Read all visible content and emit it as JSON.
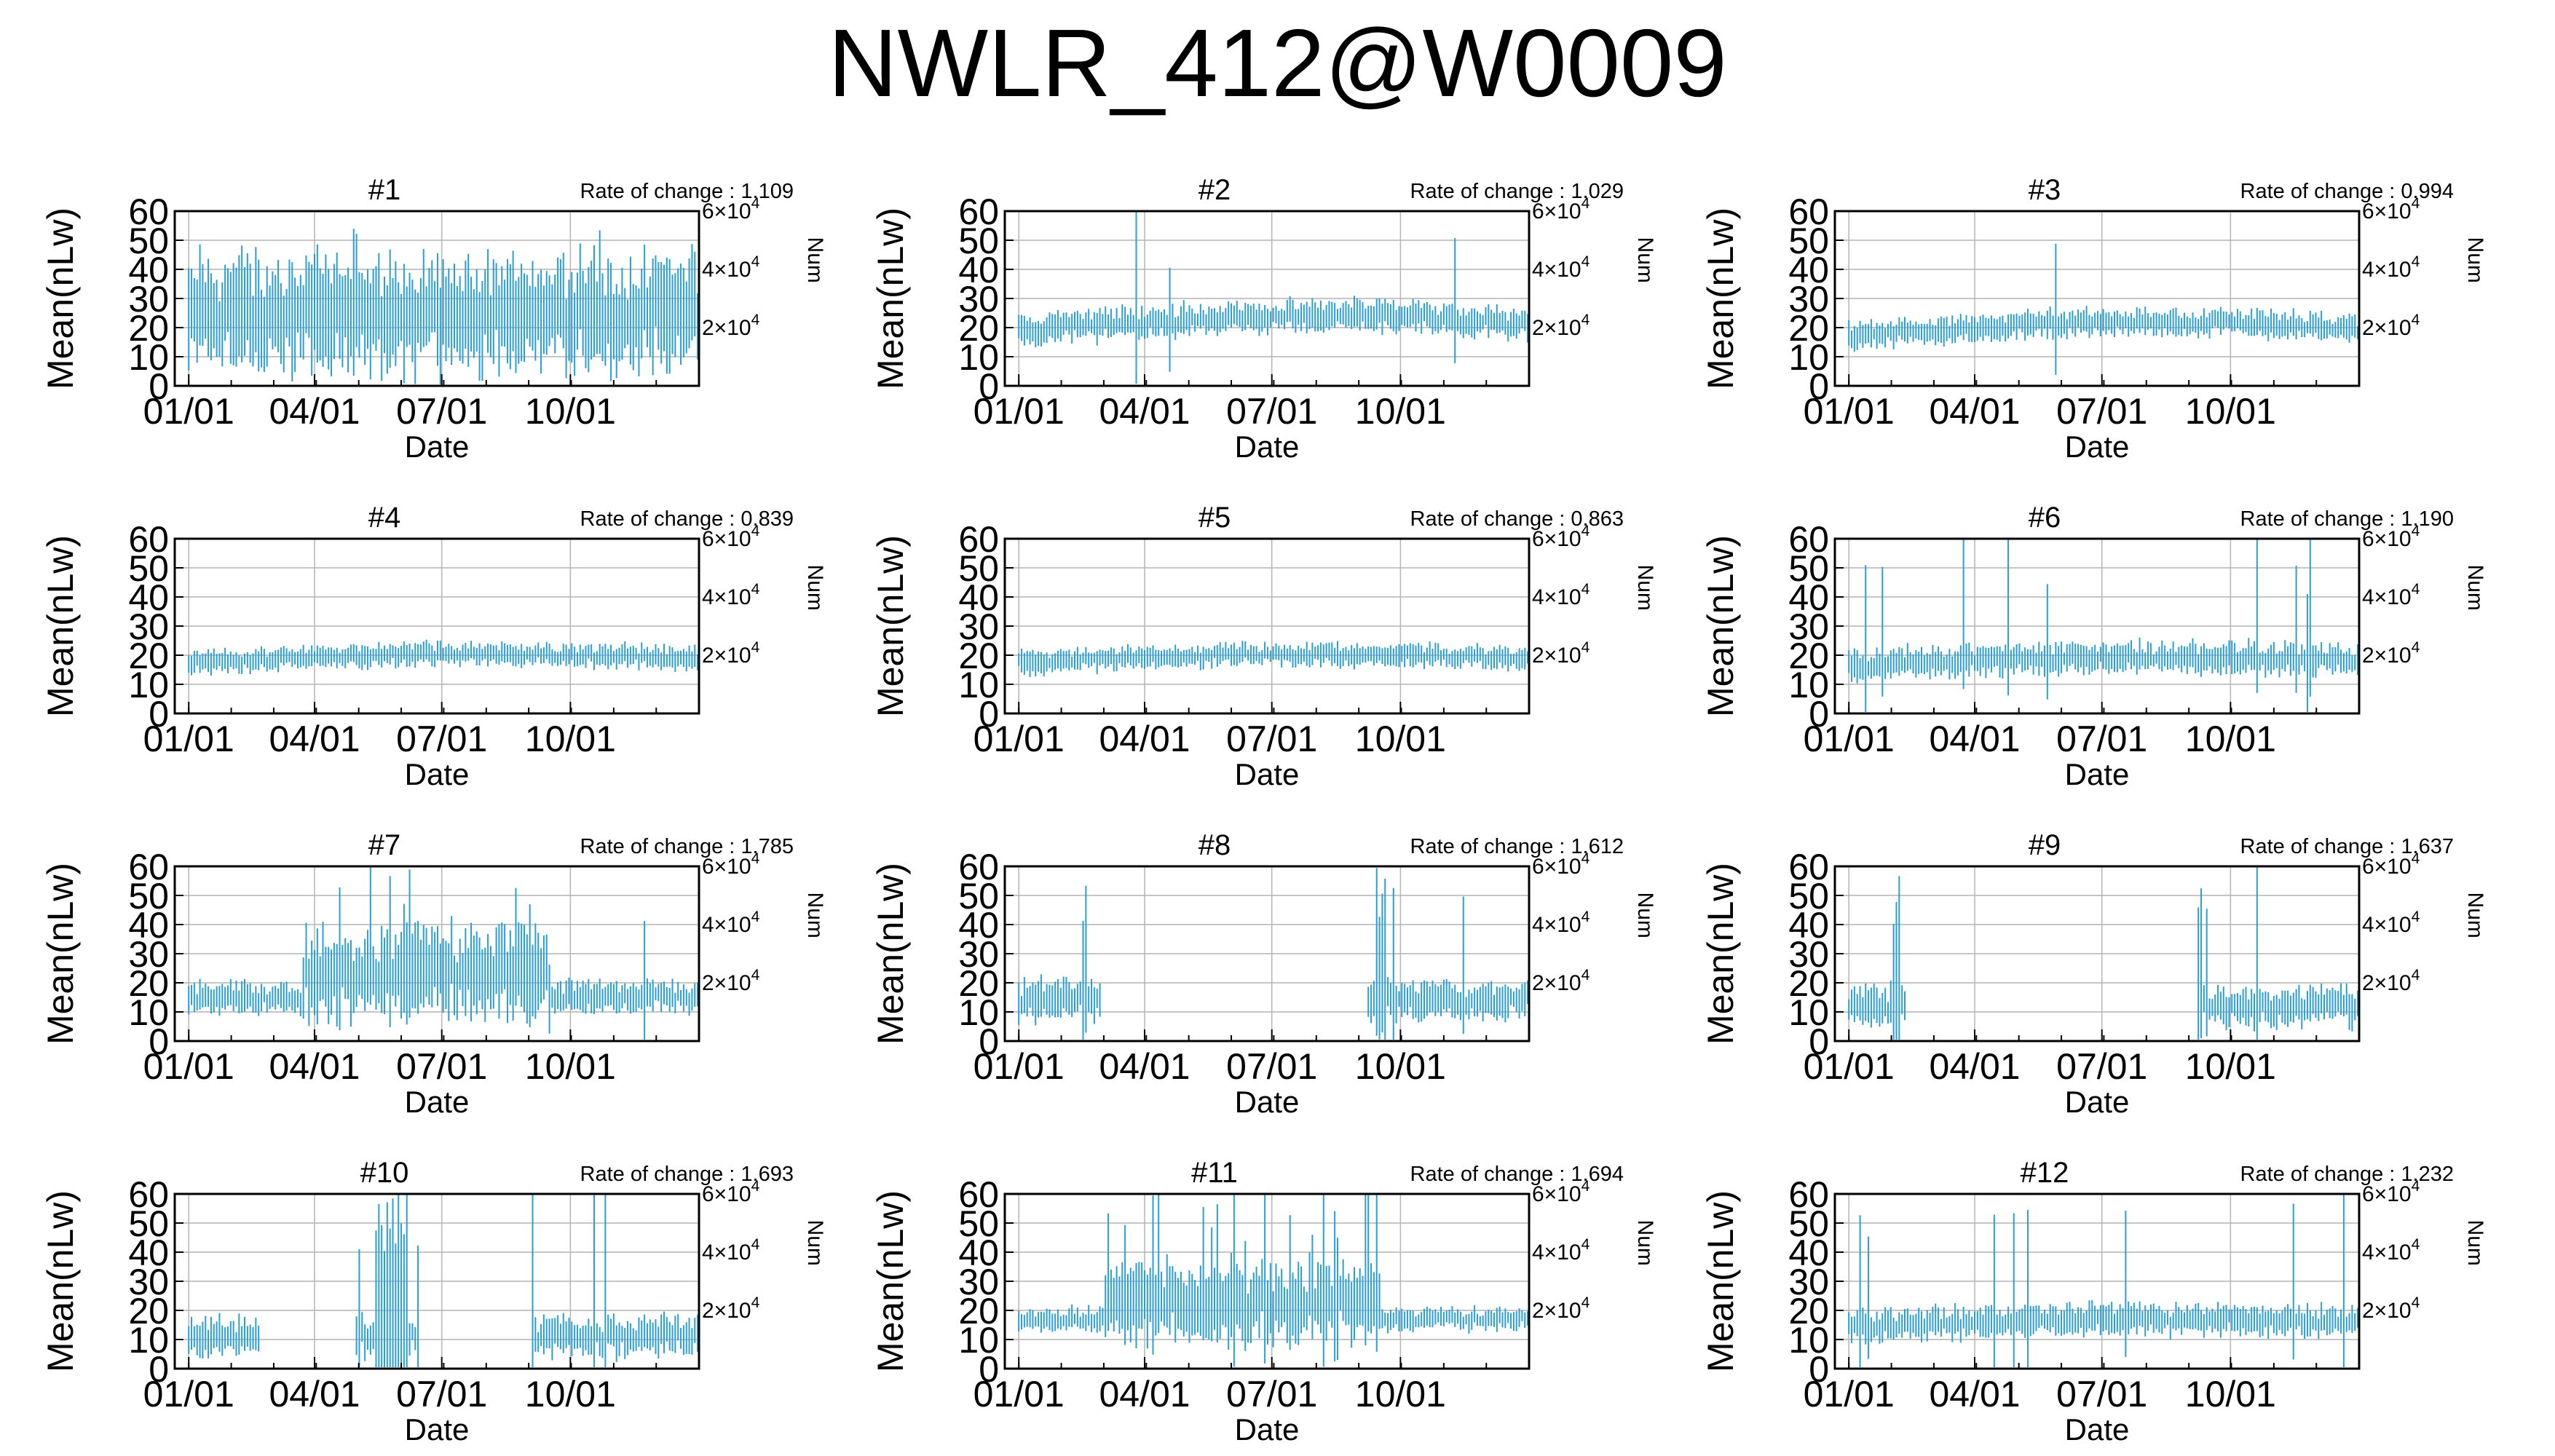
{
  "figure": {
    "title": "NWLR_412@W0009"
  },
  "colors": {
    "series": "#2a9fd6",
    "grid": "#b4b4b4",
    "frame": "#000000"
  },
  "chart_data": [
    {
      "type": "line",
      "title": "#1",
      "rate_of_change": "Rate of change : 1.109",
      "profile": "#1"
    },
    {
      "type": "line",
      "title": "#2",
      "rate_of_change": "Rate of change : 1.029",
      "profile": "#2"
    },
    {
      "type": "line",
      "title": "#3",
      "rate_of_change": "Rate of change : 0.994",
      "profile": "#3"
    },
    {
      "type": "line",
      "title": "#4",
      "rate_of_change": "Rate of change : 0.839",
      "profile": "#4"
    },
    {
      "type": "line",
      "title": "#5",
      "rate_of_change": "Rate of change : 0.863",
      "profile": "#5"
    },
    {
      "type": "line",
      "title": "#6",
      "rate_of_change": "Rate of change : 1.190",
      "profile": "#6"
    },
    {
      "type": "line",
      "title": "#7",
      "rate_of_change": "Rate of change : 1.785",
      "profile": "#7"
    },
    {
      "type": "line",
      "title": "#8",
      "rate_of_change": "Rate of change : 1.612",
      "profile": "#8"
    },
    {
      "type": "line",
      "title": "#9",
      "rate_of_change": "Rate of change : 1.637",
      "profile": "#9"
    },
    {
      "type": "line",
      "title": "#10",
      "rate_of_change": "Rate of change : 1.693",
      "profile": "#10"
    },
    {
      "type": "line",
      "title": "#11",
      "rate_of_change": "Rate of change : 1.694",
      "profile": "#11"
    },
    {
      "type": "line",
      "title": "#12",
      "rate_of_change": "Rate of change : 1.232",
      "profile": "#12"
    }
  ],
  "axes": {
    "xlabel": "Date",
    "ylabel": "Mean(nLw)",
    "y2label": "Num",
    "x_ticks": [
      "01/01",
      "04/01",
      "07/01",
      "10/01"
    ],
    "x_tick_days": [
      0,
      90,
      181,
      273
    ],
    "xlim_days": [
      -10,
      365
    ],
    "ylim": [
      0,
      60
    ],
    "y_ticks": [
      0,
      10,
      20,
      30,
      40,
      50,
      60
    ],
    "y2_ticks": [
      {
        "value": 60000,
        "base": "6×10",
        "exp": "4",
        "y_equiv": 60
      },
      {
        "value": 40000,
        "base": "4×10",
        "exp": "4",
        "y_equiv": 40
      },
      {
        "value": 20000,
        "base": "2×10",
        "exp": "4",
        "y_equiv": 20
      }
    ],
    "grid": true
  }
}
